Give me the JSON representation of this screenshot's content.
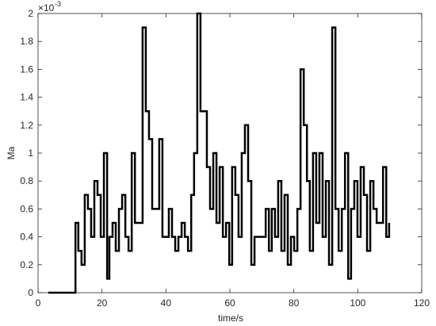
{
  "chart_data": {
    "type": "stairs",
    "x_label": "time/s",
    "y_label": "Ma",
    "y_exponent_base": "×10",
    "y_exponent": "-3",
    "color": "#000000",
    "xlim": [
      0,
      120
    ],
    "xticks": [
      0,
      20,
      40,
      60,
      80,
      100,
      120
    ],
    "ylim": [
      0,
      2
    ],
    "yticks": [
      0,
      0.2,
      0.4,
      0.6,
      0.8,
      1,
      1.2,
      1.4,
      1.6,
      1.8,
      2
    ],
    "x": [
      3.2,
      11.7,
      12.6,
      13.6,
      14.6,
      15.6,
      16.6,
      17.6,
      18.6,
      19.6,
      20.6,
      21.6,
      22.3,
      23.3,
      24.3,
      25.3,
      26.3,
      27.3,
      28.3,
      29.3,
      30.3,
      32.7,
      33.7,
      34.7,
      35.7,
      37.9,
      38.9,
      40.9,
      41.9,
      42.9,
      43.9,
      44.9,
      45.9,
      46.9,
      47.9,
      48.8,
      49.8,
      50.8,
      52.8,
      53.8,
      54.8,
      55.8,
      56.8,
      57.8,
      58.8,
      59.8,
      60.7,
      61.7,
      62.7,
      63.7,
      64.7,
      65.7,
      66.7,
      67.7,
      71.2,
      72.2,
      73.1,
      74.1,
      75.1,
      76.1,
      77.1,
      78.1,
      79.1,
      80.1,
      81.1,
      82.1,
      83.1,
      84.1,
      85.0,
      86.0,
      87.0,
      88.0,
      89.0,
      90.0,
      91.0,
      92.0,
      93.0,
      94.0,
      95.0,
      96.0,
      97.0,
      97.9,
      98.9,
      99.9,
      100.9,
      101.9,
      102.9,
      103.9,
      104.9,
      105.9,
      107.9,
      108.9,
      109.8
    ],
    "values": [
      0,
      0.5,
      0.3,
      0.2,
      0.7,
      0.6,
      0.4,
      0.8,
      0.7,
      0.4,
      1.0,
      0.1,
      0.4,
      0.5,
      0.3,
      0.6,
      0.7,
      0.4,
      0.3,
      1.0,
      0.5,
      1.9,
      1.3,
      1.1,
      0.6,
      1.1,
      0.4,
      0.6,
      0.4,
      0.3,
      0.4,
      0.5,
      0.4,
      0.3,
      0.7,
      1.0,
      2.0,
      1.3,
      0.9,
      0.6,
      1.0,
      0.5,
      0.9,
      0.4,
      0.5,
      0.2,
      0.9,
      0.7,
      0.4,
      1.0,
      1.2,
      0.8,
      0.2,
      0.4,
      0.6,
      0.3,
      0.6,
      0.4,
      0.8,
      0.3,
      0.7,
      0.2,
      0.4,
      0.3,
      0.6,
      1.6,
      1.2,
      0.8,
      0.3,
      1.0,
      0.5,
      1.0,
      0.4,
      0.8,
      0.2,
      1.9,
      0.6,
      0.3,
      0.6,
      1.0,
      0.1,
      0.6,
      0.8,
      0.4,
      0.9,
      0.7,
      0.3,
      0.8,
      0.6,
      0.5,
      0.9,
      0.4,
      0.5
    ]
  }
}
